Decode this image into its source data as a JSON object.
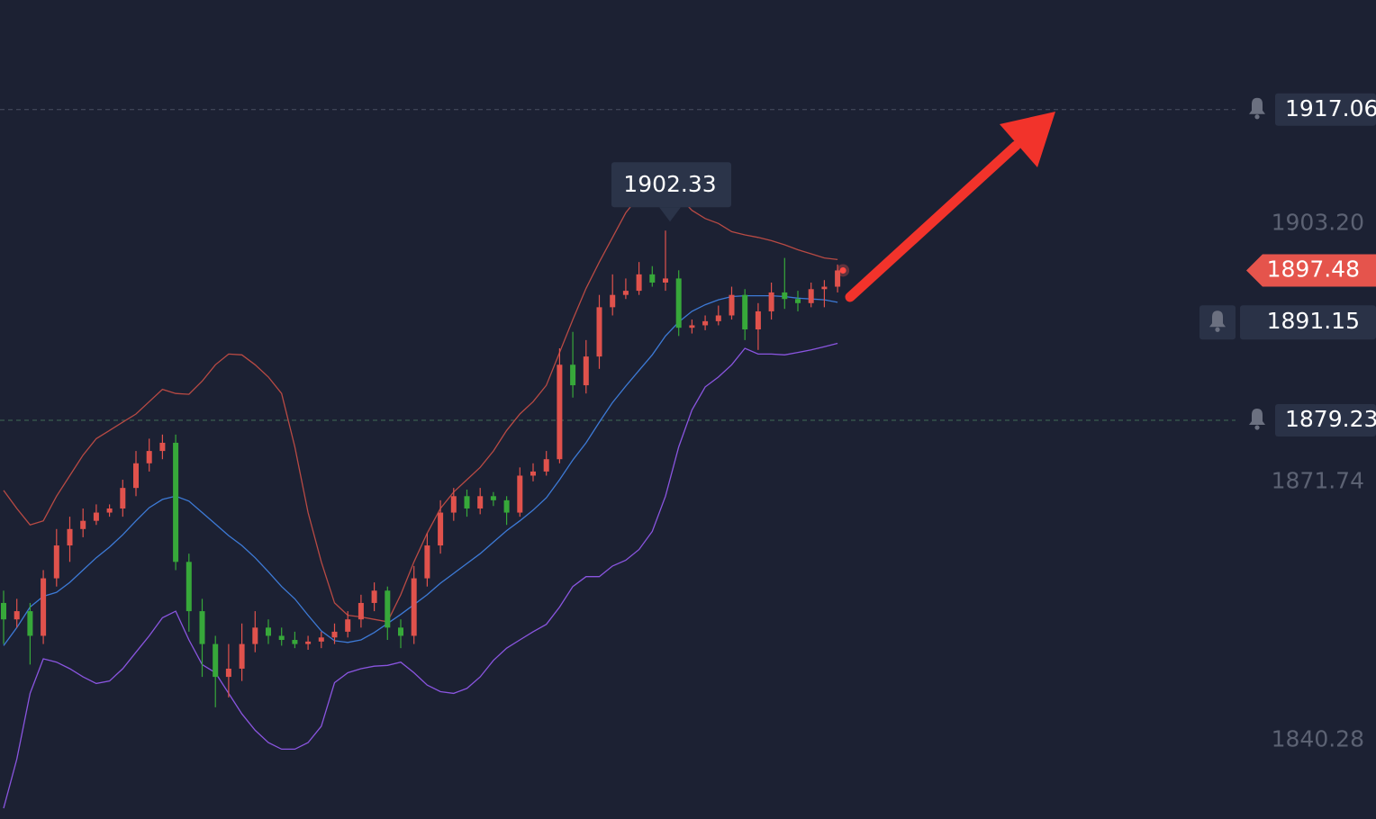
{
  "chart_data": {
    "type": "candlestick",
    "ylim": [
      1830.7,
      1930.4
    ],
    "yticks": [
      {
        "value": 1903.2,
        "label": "1903.20"
      },
      1871.74,
      1840.28
    ],
    "alerts": [
      1917.06,
      1879.23
    ],
    "pending_alert": 1891.15,
    "colors": {
      "up": "#e0524c",
      "down": "#37a83a",
      "upper": "#b84a44",
      "middle": "#3d7ad6",
      "lower": "#8a55e0"
    },
    "candles": {
      "open": [
        1857,
        1855,
        1856,
        1853,
        1860,
        1864,
        1866,
        1867,
        1868,
        1868.5,
        1871,
        1874,
        1875.5,
        1876.5,
        1862,
        1856,
        1852,
        1848,
        1849,
        1852,
        1854,
        1853,
        1852.5,
        1852,
        1852.3,
        1852.8,
        1853.5,
        1855,
        1857,
        1858.5,
        1854,
        1853,
        1860,
        1864,
        1868,
        1870,
        1868.5,
        1870,
        1869.5,
        1868,
        1872.5,
        1873,
        1874.5,
        1886,
        1883.5,
        1887,
        1893,
        1894.5,
        1895,
        1897,
        1896,
        1896.5,
        1890.5,
        1890.8,
        1891.3,
        1892,
        1894.5,
        1890.3,
        1892.5,
        1894.8,
        1894,
        1893.5,
        1895.2,
        1895.5
      ],
      "high": [
        1858.5,
        1857.5,
        1857,
        1861,
        1866,
        1867.5,
        1868.5,
        1869,
        1869,
        1872,
        1875.5,
        1877,
        1877.5,
        1877.5,
        1863,
        1857.5,
        1853,
        1852,
        1854.5,
        1856,
        1855,
        1854,
        1853.5,
        1853,
        1853.5,
        1854.5,
        1856,
        1858,
        1859.5,
        1859,
        1855,
        1861.5,
        1865.5,
        1869.5,
        1871,
        1870.8,
        1871,
        1870.5,
        1870,
        1873.5,
        1874,
        1875.5,
        1888,
        1890,
        1889,
        1894.5,
        1897,
        1896.5,
        1898.5,
        1898,
        1902.33,
        1897.5,
        1891.5,
        1892,
        1893.2,
        1895.5,
        1895.2,
        1893.5,
        1896,
        1899,
        1895,
        1896,
        1896.3,
        1898.2
      ],
      "low": [
        1852,
        1854,
        1849.5,
        1852,
        1859,
        1862,
        1865,
        1866.5,
        1867.5,
        1867.5,
        1870,
        1873,
        1874.5,
        1861,
        1853.5,
        1848,
        1844.3,
        1845.5,
        1847.5,
        1851,
        1852,
        1851.8,
        1851.5,
        1851.3,
        1851.5,
        1852,
        1852.8,
        1854,
        1856,
        1852.5,
        1851.5,
        1852,
        1859,
        1863,
        1867,
        1867.5,
        1867.8,
        1868.8,
        1866.5,
        1867.5,
        1871.8,
        1872.5,
        1874,
        1882,
        1882.5,
        1885.5,
        1892,
        1894,
        1894.5,
        1895.5,
        1895,
        1889.5,
        1889.8,
        1890.2,
        1890.8,
        1891.5,
        1889,
        1887.8,
        1891.5,
        1892.8,
        1892.5,
        1893,
        1893,
        1894.8
      ],
      "close": [
        1855,
        1856,
        1853,
        1860,
        1864,
        1866,
        1867,
        1868,
        1868.5,
        1871,
        1874,
        1875.5,
        1876.5,
        1862,
        1856,
        1852,
        1848,
        1849,
        1852,
        1854,
        1853,
        1852.5,
        1852,
        1852.3,
        1852.8,
        1853.5,
        1855,
        1857,
        1858.5,
        1854,
        1853,
        1860,
        1864,
        1868,
        1870,
        1868.5,
        1870,
        1869.5,
        1868,
        1872.5,
        1873,
        1874.5,
        1886,
        1883.5,
        1887,
        1893,
        1894.5,
        1895,
        1897,
        1896,
        1896.5,
        1890.5,
        1890.8,
        1891.3,
        1892,
        1894.5,
        1890.3,
        1892.5,
        1894.8,
        1894,
        1893.5,
        1895.2,
        1895.5,
        1897.48
      ]
    },
    "bands": {
      "upper": [
        1870.7,
        1868.5,
        1866.5,
        1867,
        1870,
        1872.5,
        1875,
        1877,
        1878,
        1879,
        1880,
        1881.5,
        1883,
        1882.5,
        1882.4,
        1884,
        1886,
        1887.3,
        1887.2,
        1886,
        1884.5,
        1882.5,
        1876,
        1868,
        1862,
        1857,
        1855.5,
        1855.3,
        1855,
        1854.7,
        1858,
        1862,
        1865.5,
        1868.5,
        1870.5,
        1872,
        1873.5,
        1875.5,
        1878,
        1880,
        1881.5,
        1883.5,
        1887.5,
        1891.5,
        1895.3,
        1898.5,
        1901.5,
        1904.5,
        1906.5,
        1907.5,
        1907.9,
        1906.5,
        1904.8,
        1903.8,
        1903.2,
        1902.2,
        1901.8,
        1901.5,
        1901.1,
        1900.6,
        1900,
        1899.5,
        1899,
        1898.8
      ],
      "middle": [
        1851.8,
        1854,
        1856.5,
        1857.8,
        1858.3,
        1859.5,
        1861,
        1862.5,
        1863.8,
        1865.3,
        1867,
        1868.6,
        1869.6,
        1870,
        1869.4,
        1868,
        1866.6,
        1865.2,
        1864,
        1862.5,
        1860.8,
        1859,
        1857.5,
        1855.5,
        1853.6,
        1852.4,
        1852.2,
        1852.5,
        1853.4,
        1854.5,
        1855.6,
        1856.8,
        1858,
        1859.4,
        1860.6,
        1861.8,
        1863,
        1864.4,
        1865.8,
        1867,
        1868.3,
        1869.8,
        1872,
        1874.4,
        1876.5,
        1879,
        1881.4,
        1883.4,
        1885.3,
        1887.2,
        1889.5,
        1891.2,
        1892.5,
        1893.3,
        1893.9,
        1894.3,
        1894.4,
        1894.4,
        1894.4,
        1894.3,
        1894.1,
        1894,
        1893.9,
        1893.6
      ],
      "lower": [
        1832,
        1838,
        1846,
        1850.2,
        1849.8,
        1849,
        1848,
        1847.2,
        1847.5,
        1849,
        1851,
        1853,
        1855.2,
        1856,
        1852.5,
        1849.5,
        1848.5,
        1846,
        1843.5,
        1841.5,
        1840,
        1839.2,
        1839.2,
        1840,
        1842,
        1847.3,
        1848.5,
        1849,
        1849.3,
        1849.4,
        1849.8,
        1848.5,
        1847,
        1846.2,
        1846,
        1846.6,
        1848,
        1850,
        1851.5,
        1852.5,
        1853.5,
        1854.4,
        1856.5,
        1859,
        1860.2,
        1860.2,
        1861.5,
        1862.2,
        1863.5,
        1865.7,
        1870,
        1876,
        1880.5,
        1883.3,
        1884.5,
        1886,
        1888,
        1887.3,
        1887.3,
        1887.2,
        1887.5,
        1887.8,
        1888.2,
        1888.6
      ]
    }
  }
}
